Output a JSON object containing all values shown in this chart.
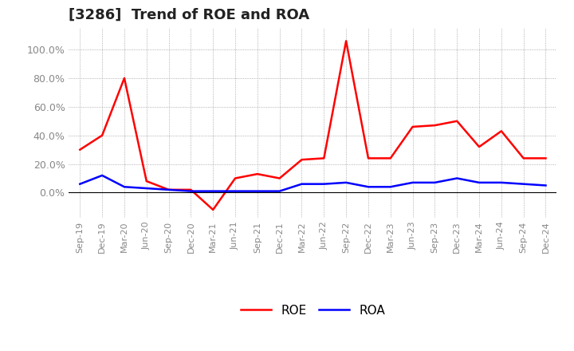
{
  "title": "[3286]  Trend of ROE and ROA",
  "labels": [
    "Sep-19",
    "Dec-19",
    "Mar-20",
    "Jun-20",
    "Sep-20",
    "Dec-20",
    "Mar-21",
    "Jun-21",
    "Sep-21",
    "Dec-21",
    "Mar-22",
    "Jun-22",
    "Sep-22",
    "Dec-22",
    "Mar-23",
    "Jun-23",
    "Sep-23",
    "Dec-23",
    "Mar-24",
    "Jun-24",
    "Sep-24",
    "Dec-24"
  ],
  "roe": [
    0.3,
    0.4,
    0.8,
    0.08,
    0.02,
    0.02,
    -0.12,
    0.1,
    0.13,
    0.1,
    0.23,
    0.24,
    1.06,
    0.24,
    0.24,
    0.46,
    0.47,
    0.5,
    0.32,
    0.43,
    0.24,
    0.24
  ],
  "roa": [
    0.06,
    0.12,
    0.04,
    0.03,
    0.02,
    0.01,
    0.01,
    0.01,
    0.01,
    0.01,
    0.06,
    0.06,
    0.07,
    0.04,
    0.04,
    0.07,
    0.07,
    0.1,
    0.07,
    0.07,
    0.06,
    0.05
  ],
  "roe_color": "#ff0000",
  "roa_color": "#0000ff",
  "ylim": [
    -0.175,
    1.15
  ],
  "yticks": [
    0.0,
    0.2,
    0.4,
    0.6,
    0.8,
    1.0
  ],
  "background_color": "#ffffff",
  "grid_color": "#999999",
  "title_fontsize": 13,
  "legend_fontsize": 11,
  "tick_label_color": "#888888"
}
